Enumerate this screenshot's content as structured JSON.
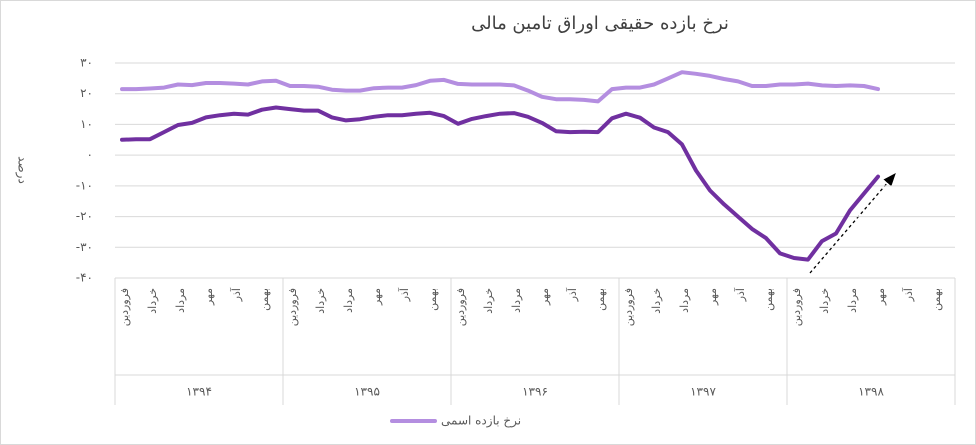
{
  "chart_data": {
    "type": "line",
    "title": "نرخ بازده حقیقی اوراق تامین مالی",
    "y_label": "درصد",
    "categories": [
      "فروردین",
      null,
      "خرداد",
      null,
      "مرداد",
      null,
      "مهر",
      null,
      "آذر",
      null,
      "بهمن",
      null,
      "فروردین",
      null,
      "خرداد",
      null,
      "مرداد",
      null,
      "مهر",
      null,
      "آذر",
      null,
      "بهمن",
      null,
      "فروردین",
      null,
      "خرداد",
      null,
      "مرداد",
      null,
      "مهر",
      null,
      "آذر",
      null,
      "بهمن",
      null,
      "فروردین",
      null,
      "خرداد",
      null,
      "مرداد",
      null,
      "مهر",
      null,
      "آذر",
      null,
      "بهمن",
      null,
      "فروردین",
      null,
      "خرداد",
      null,
      "مرداد",
      null,
      "مهر",
      null,
      "آذر",
      null,
      "بهمن",
      null
    ],
    "years": [
      "۱۳۹۴",
      "۱۳۹۵",
      "۱۳۹۶",
      "۱۳۹۷",
      "۱۳۹۸"
    ],
    "series": [
      {
        "name": "نرخ بازده اسمی",
        "color": "#b48ee0",
        "values": [
          21.5,
          21.5,
          21.7,
          22,
          23,
          22.8,
          23.5,
          23.5,
          23.3,
          23,
          24,
          24.2,
          22.5,
          22.5,
          22.3,
          21.3,
          21,
          21,
          21.8,
          22,
          22,
          22.8,
          24.2,
          24.5,
          23.2,
          23,
          23,
          23,
          22.7,
          21,
          19,
          18.2,
          18.2,
          18,
          17.5,
          21.5,
          22,
          22,
          23,
          25,
          27,
          26.5,
          25.8,
          24.8,
          24,
          22.5,
          22.5,
          23,
          23,
          23.3,
          22.7,
          22.5,
          22.7,
          22.5,
          21.5,
          null,
          null,
          null,
          null,
          null
        ]
      },
      {
        "color": "#7030a0",
        "values": [
          5,
          5.2,
          5.2,
          7.5,
          9.8,
          10.5,
          12.3,
          13,
          13.5,
          13.2,
          14.8,
          15.5,
          15,
          14.5,
          14.5,
          12.3,
          11.3,
          11.7,
          12.5,
          13,
          13,
          13.5,
          13.8,
          12.7,
          10.2,
          11.8,
          12.7,
          13.5,
          13.7,
          12.5,
          10.5,
          7.8,
          7.5,
          7.6,
          7.5,
          12,
          13.5,
          12.2,
          9,
          7.5,
          3.5,
          -5,
          -11.5,
          -16,
          -20,
          -24,
          -27,
          -32,
          -33.5,
          -34,
          -28,
          -25.5,
          -18,
          -12.5,
          -7,
          null,
          null,
          null,
          null,
          null
        ]
      }
    ],
    "ylim": [
      -40,
      30
    ],
    "yticks": [
      {
        "value": 30,
        "label": "۳۰"
      },
      {
        "value": 20,
        "label": "۲۰"
      },
      {
        "value": 10,
        "label": "۱۰"
      },
      {
        "value": 0,
        "label": "۰"
      },
      {
        "value": -10,
        "label": "-۱۰"
      },
      {
        "value": -20,
        "label": "-۲۰"
      },
      {
        "value": -30,
        "label": "-۳۰"
      },
      {
        "value": -40,
        "label": "-۴۰"
      }
    ],
    "grid": true
  }
}
